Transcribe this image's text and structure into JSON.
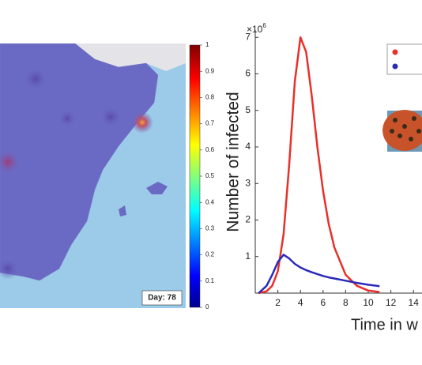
{
  "map": {
    "day_label": "Day: 78",
    "colorbar": {
      "lim": [
        0,
        1
      ],
      "ticks": [
        0,
        0.1,
        0.2,
        0.3,
        0.4,
        0.5,
        0.6,
        0.7,
        0.8,
        0.9,
        1
      ]
    }
  },
  "chart_data": {
    "type": "line",
    "y_label": "Number of infected",
    "x_label": "Time in w",
    "y_multiplier": "×10",
    "y_multiplier_exp": "6",
    "x": [
      0.3,
      1,
      1.5,
      2,
      2.5,
      3,
      3.5,
      4,
      4.5,
      5,
      5.5,
      6,
      6.5,
      7,
      8,
      9,
      10,
      11
    ],
    "series": [
      {
        "color": "#e8302a",
        "values": [
          0,
          0.05,
          0.2,
          0.6,
          1.6,
          3.5,
          5.8,
          7.0,
          6.6,
          5.4,
          4.0,
          2.8,
          1.9,
          1.25,
          0.5,
          0.2,
          0.07,
          0.03
        ]
      },
      {
        "color": "#2a2ab8",
        "values": [
          0,
          0.2,
          0.5,
          0.85,
          1.05,
          0.95,
          0.8,
          0.7,
          0.63,
          0.57,
          0.52,
          0.47,
          0.43,
          0.4,
          0.34,
          0.28,
          0.23,
          0.19
        ]
      }
    ],
    "xlim": [
      0,
      15
    ],
    "ylim": [
      0,
      7.2
    ],
    "xticks": [
      2,
      4,
      6,
      8,
      10,
      12,
      14
    ],
    "yticks": [
      1,
      2,
      3,
      4,
      5,
      6,
      7
    ]
  }
}
